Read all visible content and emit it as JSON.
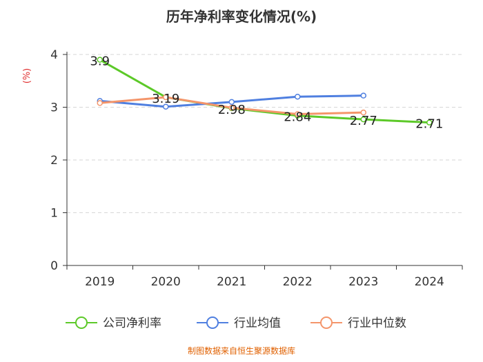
{
  "chart_data": {
    "type": "line",
    "title": "历年净利率变化情况(%)",
    "ylabel": "(%)",
    "categories": [
      "2019",
      "2020",
      "2021",
      "2022",
      "2023",
      "2024"
    ],
    "ylim": [
      0,
      4
    ],
    "yticks": [
      0,
      1,
      2,
      3,
      4
    ],
    "grid": true,
    "legend_position": "bottom",
    "series": [
      {
        "name": "公司净利率",
        "color": "#5cc928",
        "values": [
          3.9,
          3.19,
          2.98,
          2.84,
          2.77,
          2.71
        ],
        "data_labels": [
          "3.9",
          "3.19",
          "2.98",
          "2.84",
          "2.77",
          "2.71"
        ]
      },
      {
        "name": "行业均值",
        "color": "#4f7fe0",
        "values": [
          3.12,
          3.01,
          3.1,
          3.2,
          3.22,
          null
        ]
      },
      {
        "name": "行业中位数",
        "color": "#f4956a",
        "values": [
          3.08,
          3.19,
          2.99,
          2.87,
          2.9,
          null
        ]
      }
    ]
  },
  "footer": {
    "source": "制图数据来自恒生聚源数据库"
  }
}
